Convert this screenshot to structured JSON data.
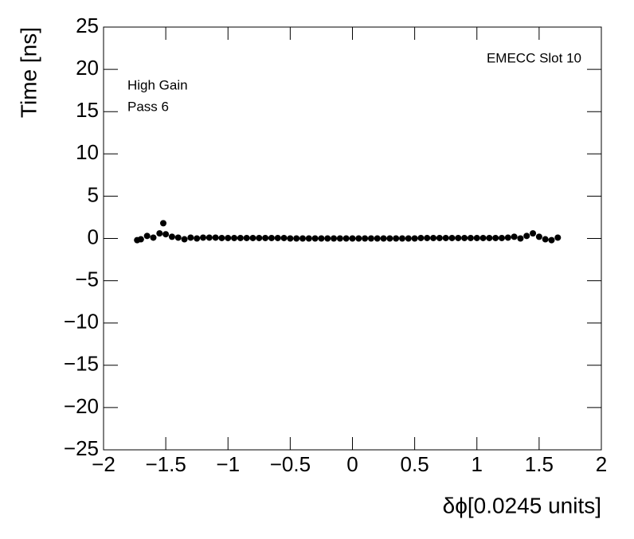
{
  "chart_data": {
    "type": "scatter",
    "x_label": "δϕ[0.0245 units]",
    "y_label": "Time [ns]",
    "annotations": [
      "EMECC Slot 10",
      "High Gain",
      "Pass 6"
    ],
    "color": "#000000",
    "xlim": [
      -2,
      2
    ],
    "ylim": [
      -25,
      25
    ],
    "xticks": [
      {
        "value": -2,
        "label": "−2"
      },
      {
        "value": -1.5,
        "label": "−1.5"
      },
      {
        "value": -1,
        "label": "−1"
      },
      {
        "value": -0.5,
        "label": "−0.5"
      },
      0,
      0.5,
      1,
      1.5,
      2
    ],
    "yticks": [
      {
        "value": -25,
        "label": "−25"
      },
      {
        "value": -20,
        "label": "−20"
      },
      {
        "value": -15,
        "label": "−15"
      },
      {
        "value": -10,
        "label": "−10"
      },
      {
        "value": -5,
        "label": "−5"
      },
      0,
      5,
      10,
      15,
      20,
      25
    ],
    "x": [
      -1.73,
      -1.7,
      -1.65,
      -1.6,
      -1.55,
      -1.52,
      -1.5,
      -1.45,
      -1.4,
      -1.35,
      -1.3,
      -1.25,
      -1.2,
      -1.15,
      -1.1,
      -1.05,
      -1,
      -0.95,
      -0.9,
      -0.85,
      -0.8,
      -0.75,
      -0.7,
      -0.65,
      -0.6,
      -0.55,
      -0.5,
      -0.45,
      -0.4,
      -0.35,
      -0.3,
      -0.25,
      -0.2,
      -0.15,
      -0.1,
      -0.05,
      0,
      0.05,
      0.1,
      0.15,
      0.2,
      0.25,
      0.3,
      0.35,
      0.4,
      0.45,
      0.5,
      0.55,
      0.6,
      0.65,
      0.7,
      0.75,
      0.8,
      0.85,
      0.9,
      0.95,
      1,
      1.05,
      1.1,
      1.15,
      1.2,
      1.25,
      1.3,
      1.35,
      1.4,
      1.45,
      1.5,
      1.55,
      1.6,
      1.65
    ],
    "values": [
      -0.2,
      -0.1,
      0.3,
      0.1,
      0.6,
      1.8,
      0.5,
      0.2,
      0.1,
      -0.1,
      0.1,
      0,
      0.1,
      0.1,
      0.1,
      0.05,
      0.05,
      0.05,
      0.05,
      0.05,
      0.05,
      0.05,
      0.05,
      0.05,
      0.05,
      0.05,
      0,
      0,
      0,
      0,
      0,
      0,
      0,
      0,
      0,
      0,
      0,
      0,
      0,
      0,
      0,
      0,
      0,
      0,
      0,
      0,
      0,
      0.05,
      0.05,
      0.05,
      0.05,
      0.05,
      0.05,
      0.05,
      0.05,
      0.05,
      0.05,
      0.05,
      0.05,
      0.05,
      0.05,
      0.1,
      0.2,
      0,
      0.3,
      0.6,
      0.2,
      -0.1,
      -0.2,
      0.1
    ]
  }
}
